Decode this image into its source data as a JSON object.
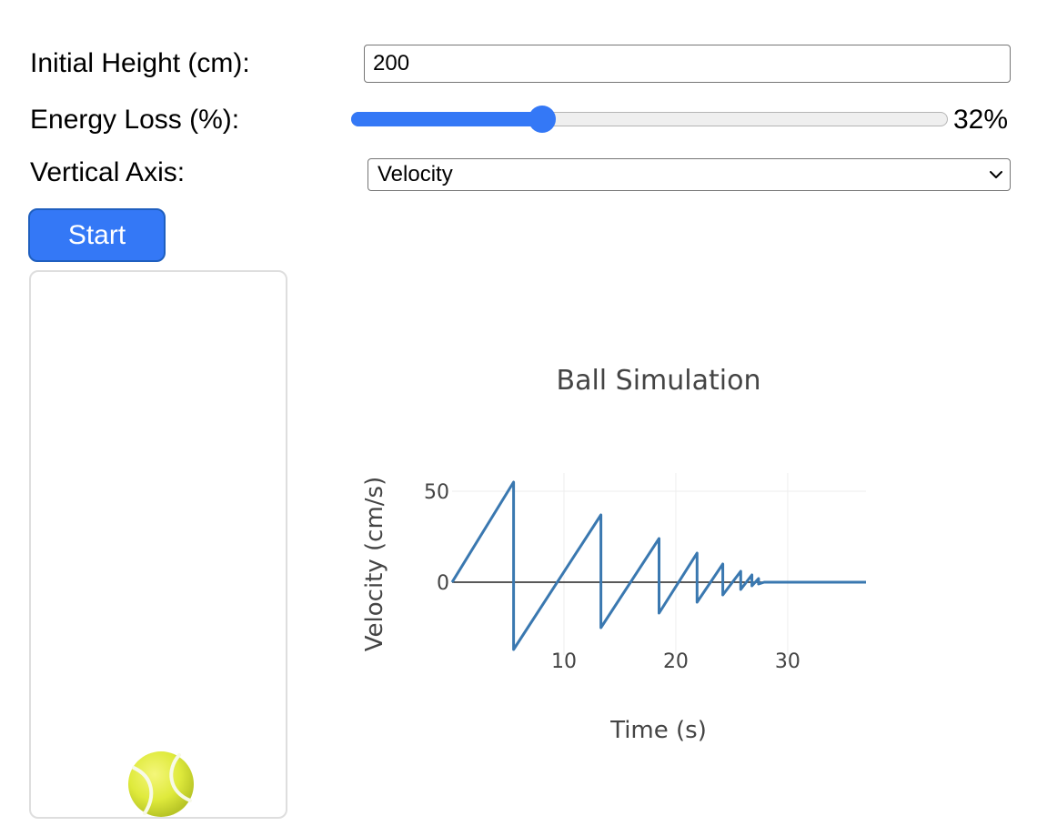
{
  "form": {
    "height_label": "Initial Height (cm):",
    "height_value": "200",
    "loss_label": "Energy Loss (%):",
    "loss_value": 32,
    "loss_display": "32%",
    "axis_label": "Vertical Axis:",
    "axis_value": "Velocity"
  },
  "controls": {
    "start_label": "Start"
  },
  "simulation": {
    "ball_icon": "tennis-ball-icon"
  },
  "colors": {
    "accent": "#3478f6",
    "series": "#3a78b0",
    "ball": "#dfea3c"
  },
  "chart_data": {
    "type": "line",
    "title": "Ball Simulation",
    "xlabel": "Time (s)",
    "ylabel": "Velocity (cm/s)",
    "xlim": [
      0,
      37
    ],
    "ylim": [
      -40,
      60
    ],
    "xticks": [
      10,
      20,
      30
    ],
    "yticks": [
      0,
      50
    ],
    "grid": true,
    "series": [
      {
        "x": [
          0,
          5.5,
          5.5,
          13.3,
          13.3,
          18.5,
          18.5,
          21.9,
          21.9,
          24.2,
          24.2,
          25.8,
          25.8,
          26.8,
          26.8,
          27.4,
          27.4,
          27.9,
          37
        ],
        "y": [
          0,
          55,
          -37,
          37,
          -25,
          24,
          -17,
          16,
          -11,
          10,
          -7,
          6,
          -4,
          4,
          -2,
          2,
          -1,
          0,
          0
        ]
      }
    ]
  }
}
